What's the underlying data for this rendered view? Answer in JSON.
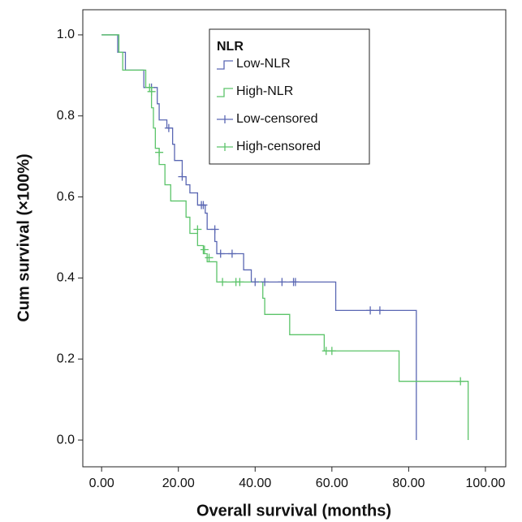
{
  "chart_data": {
    "type": "step",
    "xlabel": "Overall survival (months)",
    "ylabel": "Cum survival (×100%)",
    "legend_title": "NLR",
    "xlim": [
      -4.9,
      105.3
    ],
    "ylim": [
      -0.066,
      1.062
    ],
    "xticks": [
      {
        "value": 0,
        "label": "0.00"
      },
      {
        "value": 20,
        "label": "20.00"
      },
      {
        "value": 40,
        "label": "40.00"
      },
      {
        "value": 60,
        "label": "60.00"
      },
      {
        "value": 80,
        "label": "80.00"
      },
      {
        "value": 100,
        "label": "100.00"
      }
    ],
    "yticks": [
      {
        "value": 0,
        "label": "0.0"
      },
      {
        "value": 0.2,
        "label": "0.2"
      },
      {
        "value": 0.4,
        "label": "0.4"
      },
      {
        "value": 0.6,
        "label": "0.6"
      },
      {
        "value": 0.8,
        "label": "0.8"
      },
      {
        "value": 1,
        "label": "1.0"
      }
    ],
    "series": [
      {
        "name": "Low-NLR",
        "color": "#5a67b3",
        "x": [
          0,
          4.2,
          6.2,
          11,
          14.5,
          15,
          17,
          18.5,
          19,
          21,
          22,
          23,
          25,
          27,
          27.5,
          29.5,
          30,
          37,
          39,
          61,
          82
        ],
        "values": [
          1.0,
          0.957,
          0.913,
          0.87,
          0.83,
          0.79,
          0.77,
          0.73,
          0.69,
          0.65,
          0.63,
          0.61,
          0.58,
          0.56,
          0.52,
          0.49,
          0.46,
          0.42,
          0.39,
          0.32,
          0.0
        ]
      },
      {
        "name": "High-NLR",
        "color": "#5cc46a",
        "x": [
          0,
          4.5,
          5.5,
          11.5,
          13,
          13.5,
          14,
          15,
          16.5,
          18,
          22,
          23,
          25,
          26.5,
          27.5,
          30,
          42,
          42.5,
          49,
          58,
          77.5,
          95.5
        ],
        "values": [
          1.0,
          0.957,
          0.913,
          0.87,
          0.82,
          0.77,
          0.72,
          0.68,
          0.63,
          0.59,
          0.55,
          0.51,
          0.48,
          0.46,
          0.44,
          0.39,
          0.35,
          0.31,
          0.26,
          0.22,
          0.145,
          0.0
        ]
      }
    ],
    "censored": [
      {
        "name": "Low-censored",
        "color": "#5a67b3",
        "x": [
          13,
          17.5,
          21,
          26,
          26.5,
          29.5,
          31,
          34,
          40,
          42.5,
          47,
          50,
          50.5,
          70,
          72.5
        ],
        "values": [
          0.87,
          0.77,
          0.65,
          0.58,
          0.58,
          0.52,
          0.46,
          0.46,
          0.39,
          0.39,
          0.39,
          0.39,
          0.39,
          0.32,
          0.32
        ]
      },
      {
        "name": "High-censored",
        "color": "#5cc46a",
        "x": [
          12.5,
          13,
          15,
          25,
          26.8,
          28,
          31.5,
          35,
          36,
          58.5,
          60,
          93.5
        ],
        "values": [
          0.87,
          0.86,
          0.71,
          0.52,
          0.47,
          0.45,
          0.39,
          0.39,
          0.39,
          0.22,
          0.22,
          0.145
        ]
      }
    ]
  }
}
